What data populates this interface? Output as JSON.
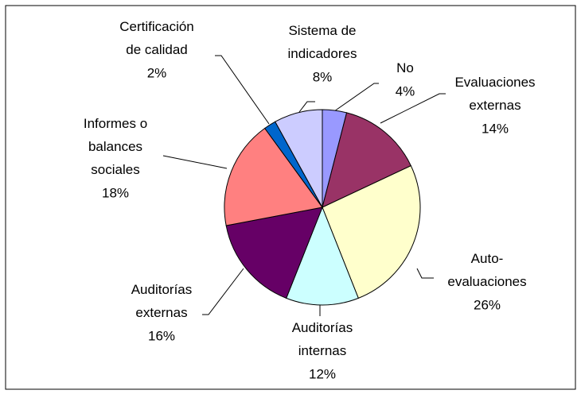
{
  "chart_data": {
    "type": "pie",
    "categories": [
      "No",
      "Evaluaciones\nexternas",
      "Auto-\nevaluaciones",
      "Auditorías\ninternas",
      "Auditorías\nexternas",
      "Informes o\nbalances\nsociales",
      "Certificación\nde calidad",
      "Sistema de\nindicadores"
    ],
    "values": [
      4,
      14,
      26,
      12,
      16,
      18,
      2,
      8
    ],
    "value_labels": [
      "4%",
      "14%",
      "26%",
      "12%",
      "16%",
      "18%",
      "2%",
      "8%"
    ],
    "colors": [
      "#9999ff",
      "#993366",
      "#ffffcc",
      "#ccffff",
      "#660066",
      "#ff8080",
      "#0066cc",
      "#ccccff"
    ]
  }
}
